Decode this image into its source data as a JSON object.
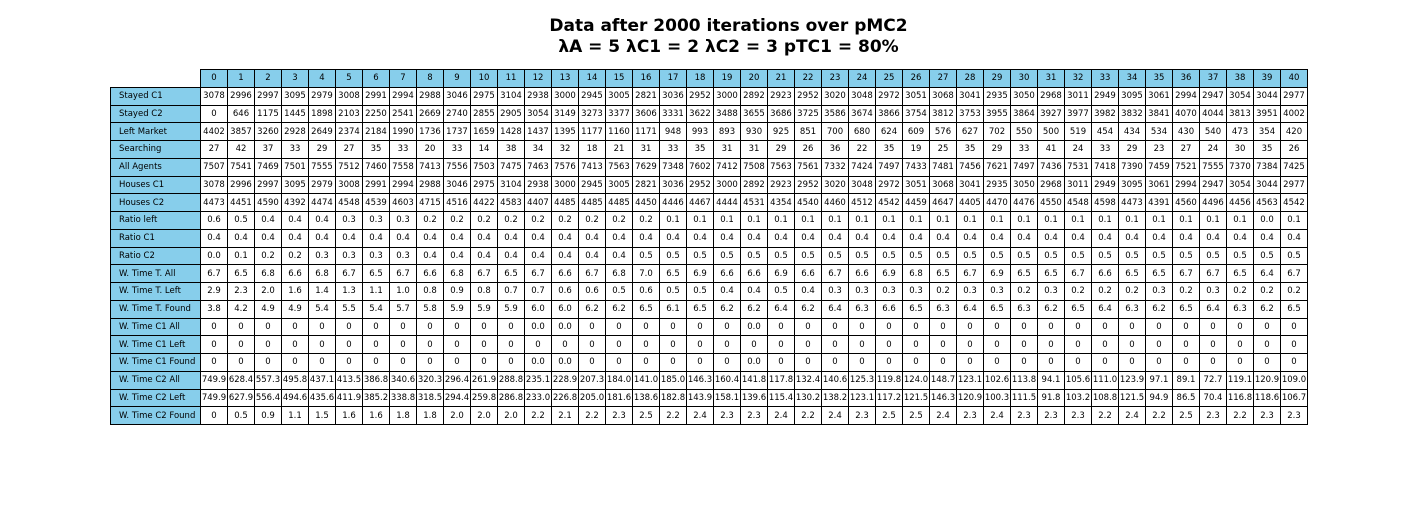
{
  "chart_data": {
    "type": "table",
    "title_line1": "Data after 2000 iterations over pMC2",
    "title_line2": "λA = 5 λC1 = 2 λC2 = 3 pTC1 = 80%",
    "columns": [
      "0",
      "1",
      "2",
      "3",
      "4",
      "5",
      "6",
      "7",
      "8",
      "9",
      "10",
      "11",
      "12",
      "13",
      "14",
      "15",
      "16",
      "17",
      "18",
      "19",
      "20",
      "21",
      "22",
      "23",
      "24",
      "25",
      "26",
      "27",
      "28",
      "29",
      "30",
      "31",
      "32",
      "33",
      "34",
      "35",
      "36",
      "37",
      "38",
      "39",
      "40"
    ],
    "rows": [
      {
        "label": "Stayed C1",
        "values": [
          "3078",
          "2996",
          "2997",
          "3095",
          "2979",
          "3008",
          "2991",
          "2994",
          "2988",
          "3046",
          "2975",
          "3104",
          "2938",
          "3000",
          "2945",
          "3005",
          "2821",
          "3036",
          "2952",
          "3000",
          "2892",
          "2923",
          "2952",
          "3020",
          "3048",
          "2972",
          "3051",
          "3068",
          "3041",
          "2935",
          "3050",
          "2968",
          "3011",
          "2949",
          "3095",
          "3061",
          "2994",
          "2947",
          "3054",
          "3044",
          "2977"
        ]
      },
      {
        "label": "Stayed C2",
        "values": [
          "0",
          "646",
          "1175",
          "1445",
          "1898",
          "2103",
          "2250",
          "2541",
          "2669",
          "2740",
          "2855",
          "2905",
          "3054",
          "3149",
          "3273",
          "3377",
          "3606",
          "3331",
          "3622",
          "3488",
          "3655",
          "3686",
          "3725",
          "3586",
          "3674",
          "3866",
          "3754",
          "3812",
          "3753",
          "3955",
          "3864",
          "3927",
          "3977",
          "3982",
          "3832",
          "3841",
          "4070",
          "4044",
          "3813",
          "3951",
          "4002"
        ]
      },
      {
        "label": "Left Market",
        "values": [
          "4402",
          "3857",
          "3260",
          "2928",
          "2649",
          "2374",
          "2184",
          "1990",
          "1736",
          "1737",
          "1659",
          "1428",
          "1437",
          "1395",
          "1177",
          "1160",
          "1171",
          "948",
          "993",
          "893",
          "930",
          "925",
          "851",
          "700",
          "680",
          "624",
          "609",
          "576",
          "627",
          "702",
          "550",
          "500",
          "519",
          "454",
          "434",
          "534",
          "430",
          "540",
          "473",
          "354",
          "420"
        ]
      },
      {
        "label": "Searching",
        "values": [
          "27",
          "42",
          "37",
          "33",
          "29",
          "27",
          "35",
          "33",
          "20",
          "33",
          "14",
          "38",
          "34",
          "32",
          "18",
          "21",
          "31",
          "33",
          "35",
          "31",
          "31",
          "29",
          "26",
          "36",
          "22",
          "35",
          "19",
          "25",
          "35",
          "29",
          "33",
          "41",
          "24",
          "33",
          "29",
          "23",
          "27",
          "24",
          "30",
          "35",
          "26"
        ]
      },
      {
        "label": "All Agents",
        "values": [
          "7507",
          "7541",
          "7469",
          "7501",
          "7555",
          "7512",
          "7460",
          "7558",
          "7413",
          "7556",
          "7503",
          "7475",
          "7463",
          "7576",
          "7413",
          "7563",
          "7629",
          "7348",
          "7602",
          "7412",
          "7508",
          "7563",
          "7561",
          "7332",
          "7424",
          "7497",
          "7433",
          "7481",
          "7456",
          "7621",
          "7497",
          "7436",
          "7531",
          "7418",
          "7390",
          "7459",
          "7521",
          "7555",
          "7370",
          "7384",
          "7425"
        ]
      },
      {
        "label": "Houses C1",
        "values": [
          "3078",
          "2996",
          "2997",
          "3095",
          "2979",
          "3008",
          "2991",
          "2994",
          "2988",
          "3046",
          "2975",
          "3104",
          "2938",
          "3000",
          "2945",
          "3005",
          "2821",
          "3036",
          "2952",
          "3000",
          "2892",
          "2923",
          "2952",
          "3020",
          "3048",
          "2972",
          "3051",
          "3068",
          "3041",
          "2935",
          "3050",
          "2968",
          "3011",
          "2949",
          "3095",
          "3061",
          "2994",
          "2947",
          "3054",
          "3044",
          "2977"
        ]
      },
      {
        "label": "Houses C2",
        "values": [
          "4473",
          "4451",
          "4590",
          "4392",
          "4474",
          "4548",
          "4539",
          "4603",
          "4715",
          "4516",
          "4422",
          "4583",
          "4407",
          "4485",
          "4485",
          "4485",
          "4450",
          "4446",
          "4467",
          "4444",
          "4531",
          "4354",
          "4540",
          "4460",
          "4512",
          "4542",
          "4459",
          "4647",
          "4405",
          "4470",
          "4476",
          "4550",
          "4548",
          "4598",
          "4473",
          "4391",
          "4560",
          "4496",
          "4456",
          "4563",
          "4542"
        ]
      },
      {
        "label": "Ratio left",
        "values": [
          "0.6",
          "0.5",
          "0.4",
          "0.4",
          "0.4",
          "0.3",
          "0.3",
          "0.3",
          "0.2",
          "0.2",
          "0.2",
          "0.2",
          "0.2",
          "0.2",
          "0.2",
          "0.2",
          "0.2",
          "0.1",
          "0.1",
          "0.1",
          "0.1",
          "0.1",
          "0.1",
          "0.1",
          "0.1",
          "0.1",
          "0.1",
          "0.1",
          "0.1",
          "0.1",
          "0.1",
          "0.1",
          "0.1",
          "0.1",
          "0.1",
          "0.1",
          "0.1",
          "0.1",
          "0.1",
          "0.0",
          "0.1"
        ]
      },
      {
        "label": "Ratio C1",
        "values": [
          "0.4",
          "0.4",
          "0.4",
          "0.4",
          "0.4",
          "0.4",
          "0.4",
          "0.4",
          "0.4",
          "0.4",
          "0.4",
          "0.4",
          "0.4",
          "0.4",
          "0.4",
          "0.4",
          "0.4",
          "0.4",
          "0.4",
          "0.4",
          "0.4",
          "0.4",
          "0.4",
          "0.4",
          "0.4",
          "0.4",
          "0.4",
          "0.4",
          "0.4",
          "0.4",
          "0.4",
          "0.4",
          "0.4",
          "0.4",
          "0.4",
          "0.4",
          "0.4",
          "0.4",
          "0.4",
          "0.4",
          "0.4"
        ]
      },
      {
        "label": "Ratio C2",
        "values": [
          "0.0",
          "0.1",
          "0.2",
          "0.2",
          "0.3",
          "0.3",
          "0.3",
          "0.3",
          "0.4",
          "0.4",
          "0.4",
          "0.4",
          "0.4",
          "0.4",
          "0.4",
          "0.4",
          "0.5",
          "0.5",
          "0.5",
          "0.5",
          "0.5",
          "0.5",
          "0.5",
          "0.5",
          "0.5",
          "0.5",
          "0.5",
          "0.5",
          "0.5",
          "0.5",
          "0.5",
          "0.5",
          "0.5",
          "0.5",
          "0.5",
          "0.5",
          "0.5",
          "0.5",
          "0.5",
          "0.5",
          "0.5"
        ]
      },
      {
        "label": "W. Time T. All",
        "values": [
          "6.7",
          "6.5",
          "6.8",
          "6.6",
          "6.8",
          "6.7",
          "6.5",
          "6.7",
          "6.6",
          "6.8",
          "6.7",
          "6.5",
          "6.7",
          "6.6",
          "6.7",
          "6.8",
          "7.0",
          "6.5",
          "6.9",
          "6.6",
          "6.6",
          "6.9",
          "6.6",
          "6.7",
          "6.6",
          "6.9",
          "6.8",
          "6.5",
          "6.7",
          "6.9",
          "6.5",
          "6.5",
          "6.7",
          "6.6",
          "6.5",
          "6.5",
          "6.7",
          "6.7",
          "6.5",
          "6.4",
          "6.7"
        ]
      },
      {
        "label": "W. Time T. Left",
        "values": [
          "2.9",
          "2.3",
          "2.0",
          "1.6",
          "1.4",
          "1.3",
          "1.1",
          "1.0",
          "0.8",
          "0.9",
          "0.8",
          "0.7",
          "0.7",
          "0.6",
          "0.6",
          "0.5",
          "0.6",
          "0.5",
          "0.5",
          "0.4",
          "0.4",
          "0.5",
          "0.4",
          "0.3",
          "0.3",
          "0.3",
          "0.3",
          "0.2",
          "0.3",
          "0.3",
          "0.2",
          "0.3",
          "0.2",
          "0.2",
          "0.2",
          "0.3",
          "0.2",
          "0.3",
          "0.2",
          "0.2",
          "0.2"
        ]
      },
      {
        "label": "W. Time T. Found",
        "values": [
          "3.8",
          "4.2",
          "4.9",
          "4.9",
          "5.4",
          "5.5",
          "5.4",
          "5.7",
          "5.8",
          "5.9",
          "5.9",
          "5.9",
          "6.0",
          "6.0",
          "6.2",
          "6.2",
          "6.5",
          "6.1",
          "6.5",
          "6.2",
          "6.2",
          "6.4",
          "6.2",
          "6.4",
          "6.3",
          "6.6",
          "6.5",
          "6.3",
          "6.4",
          "6.5",
          "6.3",
          "6.2",
          "6.5",
          "6.4",
          "6.3",
          "6.2",
          "6.5",
          "6.4",
          "6.3",
          "6.2",
          "6.5"
        ]
      },
      {
        "label": "W. Time C1 All",
        "values": [
          "0",
          "0",
          "0",
          "0",
          "0",
          "0",
          "0",
          "0",
          "0",
          "0",
          "0",
          "0",
          "0.0",
          "0.0",
          "0",
          "0",
          "0",
          "0",
          "0",
          "0",
          "0.0",
          "0",
          "0",
          "0",
          "0",
          "0",
          "0",
          "0",
          "0",
          "0",
          "0",
          "0",
          "0",
          "0",
          "0",
          "0",
          "0",
          "0",
          "0",
          "0",
          "0"
        ]
      },
      {
        "label": "W. Time C1 Left",
        "values": [
          "0",
          "0",
          "0",
          "0",
          "0",
          "0",
          "0",
          "0",
          "0",
          "0",
          "0",
          "0",
          "0",
          "0",
          "0",
          "0",
          "0",
          "0",
          "0",
          "0",
          "0",
          "0",
          "0",
          "0",
          "0",
          "0",
          "0",
          "0",
          "0",
          "0",
          "0",
          "0",
          "0",
          "0",
          "0",
          "0",
          "0",
          "0",
          "0",
          "0",
          "0"
        ]
      },
      {
        "label": "W. Time C1 Found",
        "values": [
          "0",
          "0",
          "0",
          "0",
          "0",
          "0",
          "0",
          "0",
          "0",
          "0",
          "0",
          "0",
          "0.0",
          "0.0",
          "0",
          "0",
          "0",
          "0",
          "0",
          "0",
          "0.0",
          "0",
          "0",
          "0",
          "0",
          "0",
          "0",
          "0",
          "0",
          "0",
          "0",
          "0",
          "0",
          "0",
          "0",
          "0",
          "0",
          "0",
          "0",
          "0",
          "0"
        ]
      },
      {
        "label": "W. Time C2 All",
        "values": [
          "749.9",
          "628.4",
          "557.3",
          "495.8",
          "437.1",
          "413.5",
          "386.8",
          "340.6",
          "320.3",
          "296.4",
          "261.9",
          "288.8",
          "235.1",
          "228.9",
          "207.3",
          "184.0",
          "141.0",
          "185.0",
          "146.3",
          "160.4",
          "141.8",
          "117.8",
          "132.4",
          "140.6",
          "125.3",
          "119.8",
          "124.0",
          "148.7",
          "123.1",
          "102.6",
          "113.8",
          "94.1",
          "105.6",
          "111.0",
          "123.9",
          "97.1",
          "89.1",
          "72.7",
          "119.1",
          "120.9",
          "109.0"
        ]
      },
      {
        "label": "W. Time C2 Left",
        "values": [
          "749.9",
          "627.9",
          "556.4",
          "494.6",
          "435.6",
          "411.9",
          "385.2",
          "338.8",
          "318.5",
          "294.4",
          "259.8",
          "286.8",
          "233.0",
          "226.8",
          "205.0",
          "181.6",
          "138.6",
          "182.8",
          "143.9",
          "158.1",
          "139.6",
          "115.4",
          "130.2",
          "138.2",
          "123.1",
          "117.2",
          "121.5",
          "146.3",
          "120.9",
          "100.3",
          "111.5",
          "91.8",
          "103.2",
          "108.8",
          "121.5",
          "94.9",
          "86.5",
          "70.4",
          "116.8",
          "118.6",
          "106.7"
        ]
      },
      {
        "label": "W. Time C2 Found",
        "values": [
          "0",
          "0.5",
          "0.9",
          "1.1",
          "1.5",
          "1.6",
          "1.6",
          "1.8",
          "1.8",
          "2.0",
          "2.0",
          "2.0",
          "2.2",
          "2.1",
          "2.2",
          "2.3",
          "2.5",
          "2.2",
          "2.4",
          "2.3",
          "2.3",
          "2.4",
          "2.2",
          "2.4",
          "2.3",
          "2.5",
          "2.5",
          "2.4",
          "2.3",
          "2.4",
          "2.3",
          "2.3",
          "2.3",
          "2.2",
          "2.4",
          "2.2",
          "2.5",
          "2.3",
          "2.2",
          "2.3",
          "2.3"
        ]
      }
    ]
  }
}
